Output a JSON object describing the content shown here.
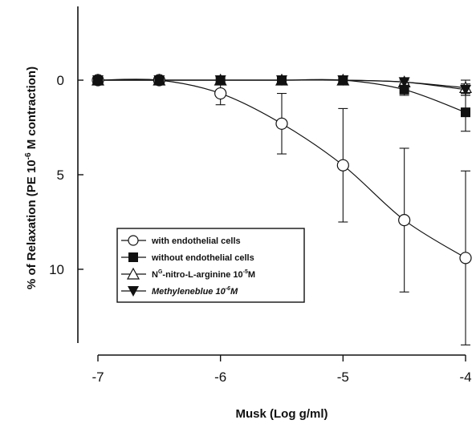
{
  "chart_data": {
    "type": "line",
    "xlabel": "Musk (Log g/ml)",
    "ylabel": "% of Relaxation (PE 10",
    "ylabel_exp": "-6",
    "ylabel_tail": " M contraction)",
    "xlim": [
      -7,
      -4
    ],
    "ylim": [
      -3.9,
      13.9
    ],
    "y_inverted": true,
    "x_ticks": [
      -7,
      -6,
      -5,
      -4
    ],
    "x_tick_labels": [
      "-7",
      "-6",
      "-5",
      "-4"
    ],
    "y_ticks": [
      0,
      5,
      10
    ],
    "y_tick_labels": [
      "0",
      "5",
      "10"
    ],
    "legend_position": "lower-left",
    "x": [
      -7,
      -6.5,
      -6,
      -5.5,
      -5,
      -4.5,
      -4
    ],
    "series": [
      {
        "name": "with endothelial cells",
        "marker": "open-circle",
        "values": [
          0,
          0,
          0.7,
          2.3,
          4.5,
          7.4,
          9.4
        ],
        "errors": [
          0,
          0,
          0.6,
          1.6,
          3.0,
          3.8,
          4.6
        ]
      },
      {
        "name": "without endothelial cells",
        "marker": "filled-square",
        "values": [
          0,
          0,
          0,
          0,
          0,
          0.5,
          1.7
        ],
        "errors": [
          0,
          0,
          0,
          0,
          0,
          0.3,
          1.0
        ]
      },
      {
        "name": "N",
        "name_sup": "G",
        "name_tail": "-nitro-L-arginine 10",
        "name_exp": "-5",
        "name_end": "M",
        "marker": "open-triangle-up",
        "values": [
          0,
          0,
          0,
          0,
          0,
          0.1,
          0.4
        ],
        "errors": [
          0,
          0,
          0,
          0,
          0,
          0.2,
          0.4
        ]
      },
      {
        "name": "Methyleneblue 10",
        "name_exp": "-6",
        "name_end": "M",
        "italic": true,
        "marker": "filled-triangle-down",
        "values": [
          0,
          0,
          0,
          0,
          0,
          0.1,
          0.5
        ],
        "errors": [
          0,
          0,
          0,
          0,
          0,
          0.1,
          0.3
        ]
      }
    ]
  }
}
